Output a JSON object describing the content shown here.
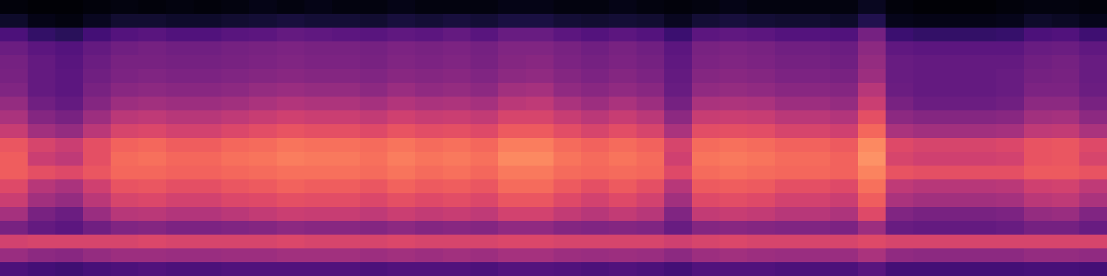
{
  "chart_data": {
    "type": "heatmap",
    "tick_labels": false,
    "color": "magma",
    "zlim": [
      0,
      100
    ],
    "z": [
      [
        2,
        1,
        1,
        2,
        3,
        2,
        3,
        2,
        3,
        4,
        3,
        4,
        3,
        3,
        4,
        3,
        3,
        3,
        4,
        4,
        3,
        3,
        4,
        3,
        2,
        3,
        4,
        3,
        3,
        3,
        3,
        6,
        2,
        1,
        1,
        1,
        2,
        3,
        3,
        2
      ],
      [
        8,
        4,
        3,
        6,
        9,
        9,
        8,
        8,
        9,
        10,
        11,
        10,
        10,
        9,
        11,
        10,
        11,
        10,
        12,
        12,
        10,
        9,
        10,
        9,
        6,
        10,
        11,
        10,
        9,
        9,
        8,
        14,
        5,
        4,
        4,
        4,
        5,
        8,
        7,
        5
      ],
      [
        24,
        18,
        16,
        22,
        26,
        27,
        25,
        25,
        27,
        28,
        30,
        29,
        28,
        27,
        29,
        28,
        30,
        27,
        31,
        31,
        28,
        26,
        28,
        26,
        20,
        28,
        29,
        28,
        26,
        26,
        25,
        34,
        20,
        18,
        18,
        18,
        19,
        24,
        25,
        21
      ],
      [
        32,
        28,
        26,
        30,
        33,
        34,
        33,
        33,
        34,
        35,
        36,
        35,
        35,
        34,
        36,
        35,
        36,
        34,
        37,
        37,
        35,
        33,
        35,
        33,
        28,
        35,
        36,
        35,
        33,
        33,
        32,
        40,
        29,
        28,
        28,
        28,
        28,
        31,
        32,
        29
      ],
      [
        34,
        30,
        27,
        32,
        35,
        35,
        34,
        34,
        35,
        36,
        37,
        36,
        36,
        35,
        37,
        36,
        37,
        35,
        38,
        39,
        36,
        34,
        36,
        34,
        29,
        36,
        37,
        36,
        34,
        34,
        33,
        42,
        31,
        30,
        30,
        30,
        30,
        33,
        34,
        31
      ],
      [
        35,
        30,
        28,
        33,
        36,
        37,
        36,
        36,
        37,
        38,
        39,
        38,
        38,
        37,
        39,
        38,
        39,
        37,
        40,
        41,
        38,
        36,
        38,
        36,
        30,
        38,
        39,
        38,
        36,
        36,
        35,
        44,
        31,
        30,
        30,
        30,
        31,
        34,
        35,
        31
      ],
      [
        37,
        30,
        28,
        35,
        39,
        40,
        39,
        39,
        40,
        42,
        43,
        42,
        42,
        40,
        43,
        41,
        42,
        40,
        45,
        46,
        41,
        39,
        41,
        39,
        31,
        41,
        42,
        41,
        39,
        39,
        38,
        50,
        32,
        30,
        30,
        30,
        31,
        36,
        36,
        32
      ],
      [
        42,
        33,
        30,
        38,
        44,
        45,
        44,
        44,
        45,
        47,
        49,
        48,
        48,
        46,
        49,
        47,
        48,
        46,
        51,
        52,
        47,
        44,
        47,
        44,
        34,
        47,
        48,
        47,
        44,
        44,
        42,
        55,
        35,
        32,
        32,
        32,
        33,
        40,
        40,
        35
      ],
      [
        47,
        38,
        35,
        44,
        51,
        52,
        50,
        50,
        52,
        54,
        56,
        55,
        55,
        53,
        56,
        54,
        55,
        53,
        58,
        58,
        54,
        51,
        54,
        51,
        40,
        54,
        55,
        54,
        51,
        51,
        49,
        62,
        40,
        38,
        38,
        38,
        39,
        45,
        46,
        40
      ],
      [
        54,
        45,
        42,
        51,
        58,
        59,
        57,
        57,
        59,
        61,
        63,
        62,
        62,
        60,
        63,
        61,
        62,
        60,
        65,
        65,
        61,
        58,
        61,
        58,
        47,
        61,
        62,
        61,
        58,
        58,
        56,
        68,
        47,
        45,
        45,
        45,
        46,
        52,
        53,
        47
      ],
      [
        64,
        58,
        55,
        62,
        67,
        68,
        66,
        66,
        68,
        69,
        71,
        70,
        70,
        69,
        71,
        69,
        70,
        68,
        73,
        73,
        69,
        67,
        69,
        67,
        58,
        69,
        70,
        69,
        67,
        67,
        65,
        75,
        60,
        58,
        58,
        58,
        59,
        63,
        64,
        60
      ],
      [
        66,
        55,
        52,
        62,
        69,
        70,
        68,
        68,
        70,
        71,
        73,
        72,
        72,
        70,
        73,
        71,
        72,
        70,
        75,
        75,
        71,
        69,
        71,
        69,
        56,
        71,
        72,
        71,
        69,
        69,
        67,
        77,
        58,
        56,
        56,
        56,
        57,
        63,
        64,
        58
      ],
      [
        66,
        62,
        60,
        64,
        68,
        68,
        67,
        67,
        68,
        69,
        70,
        70,
        70,
        69,
        71,
        69,
        70,
        68,
        72,
        72,
        69,
        68,
        69,
        68,
        60,
        69,
        70,
        69,
        68,
        68,
        67,
        74,
        63,
        62,
        62,
        62,
        62,
        65,
        65,
        63
      ],
      [
        60,
        50,
        47,
        56,
        63,
        64,
        62,
        62,
        64,
        65,
        67,
        66,
        66,
        64,
        67,
        65,
        66,
        64,
        69,
        69,
        65,
        62,
        65,
        62,
        50,
        65,
        66,
        65,
        62,
        62,
        60,
        70,
        52,
        50,
        50,
        50,
        51,
        56,
        57,
        52
      ],
      [
        55,
        45,
        42,
        51,
        58,
        59,
        57,
        57,
        59,
        60,
        62,
        61,
        61,
        59,
        62,
        60,
        61,
        59,
        64,
        64,
        60,
        57,
        60,
        57,
        45,
        60,
        61,
        60,
        57,
        57,
        55,
        66,
        47,
        45,
        45,
        45,
        46,
        51,
        52,
        47
      ],
      [
        46,
        35,
        32,
        43,
        50,
        51,
        49,
        49,
        51,
        53,
        55,
        54,
        54,
        52,
        55,
        53,
        54,
        52,
        57,
        57,
        53,
        50,
        53,
        50,
        37,
        53,
        54,
        53,
        50,
        50,
        48,
        60,
        37,
        35,
        35,
        35,
        36,
        42,
        43,
        37
      ],
      [
        35,
        30,
        28,
        33,
        37,
        38,
        36,
        36,
        37,
        38,
        40,
        39,
        39,
        38,
        40,
        38,
        39,
        38,
        41,
        41,
        38,
        37,
        38,
        37,
        31,
        38,
        39,
        38,
        37,
        37,
        36,
        44,
        31,
        30,
        30,
        30,
        31,
        34,
        34,
        31
      ],
      [
        57,
        58,
        58,
        58,
        58,
        59,
        58,
        58,
        58,
        58,
        59,
        58,
        58,
        58,
        59,
        58,
        58,
        58,
        59,
        59,
        58,
        58,
        58,
        58,
        56,
        58,
        59,
        58,
        58,
        58,
        58,
        60,
        58,
        58,
        58,
        58,
        58,
        58,
        58,
        58
      ],
      [
        43,
        40,
        39,
        42,
        44,
        44,
        43,
        43,
        44,
        44,
        45,
        45,
        45,
        44,
        45,
        44,
        45,
        44,
        46,
        46,
        44,
        43,
        44,
        43,
        40,
        44,
        45,
        44,
        43,
        43,
        43,
        47,
        41,
        40,
        40,
        40,
        40,
        42,
        42,
        41
      ],
      [
        24,
        22,
        21,
        23,
        24,
        25,
        24,
        24,
        25,
        25,
        25,
        25,
        25,
        24,
        25,
        25,
        25,
        24,
        26,
        26,
        25,
        24,
        25,
        24,
        22,
        25,
        25,
        25,
        24,
        24,
        24,
        27,
        22,
        22,
        22,
        22,
        22,
        23,
        23,
        22
      ]
    ]
  }
}
